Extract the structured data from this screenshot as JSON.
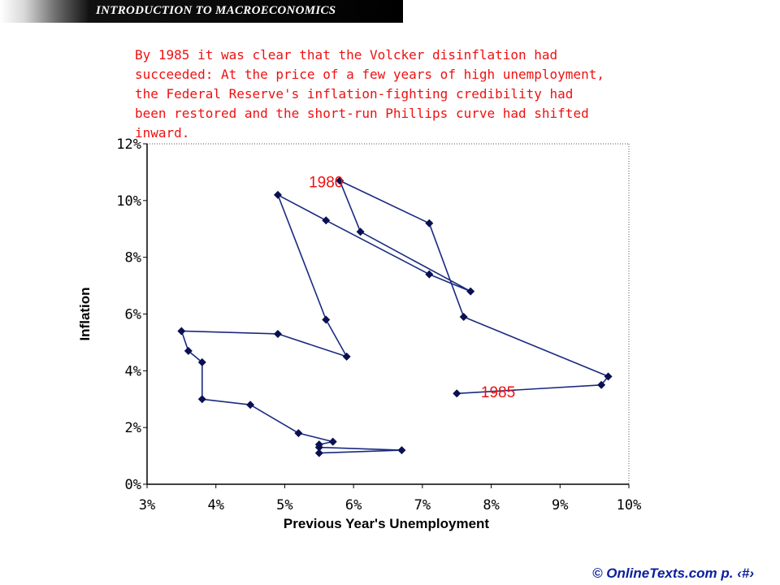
{
  "header": {
    "title": "INTRODUCTION TO MACROECONOMICS"
  },
  "caption": {
    "lines": [
      "By 1985 it was clear that the Volcker disinflation had",
      "succeeded: At the price of a few years of high unemployment,",
      "the Federal Reserve's inflation-fighting credibility had",
      "been restored and the short-run Phillips curve had shifted",
      "inward."
    ]
  },
  "footer": {
    "copyright": "© OnlineTexts.com",
    "page": "p. ‹#›"
  },
  "chart_data": {
    "type": "line",
    "title": "",
    "xlabel": "Previous Year's Unemployment",
    "ylabel": "Inflation",
    "xlim": [
      3,
      10
    ],
    "ylim": [
      0,
      12
    ],
    "x_ticks": [
      "3%",
      "4%",
      "5%",
      "6%",
      "7%",
      "8%",
      "9%",
      "10%"
    ],
    "y_ticks": [
      "0%",
      "2%",
      "4%",
      "6%",
      "8%",
      "10%",
      "12%"
    ],
    "grid": false,
    "series_color": "#1a2a80",
    "label_color": "#ee1111",
    "series": [
      {
        "points": [
          [
            5.5,
            1.1
          ],
          [
            6.7,
            1.2
          ],
          [
            5.5,
            1.3
          ],
          [
            5.5,
            1.4
          ],
          [
            5.7,
            1.5
          ],
          [
            5.2,
            1.8
          ],
          [
            4.5,
            2.8
          ],
          [
            3.8,
            3.0
          ],
          [
            3.8,
            4.3
          ],
          [
            3.6,
            4.7
          ],
          [
            3.5,
            5.4
          ],
          [
            4.9,
            5.3
          ],
          [
            5.9,
            4.5
          ],
          [
            5.6,
            5.8
          ],
          [
            4.9,
            10.2
          ],
          [
            5.6,
            9.3
          ],
          [
            7.1,
            7.4
          ],
          [
            7.7,
            6.8
          ],
          [
            6.1,
            8.9
          ],
          [
            5.8,
            10.7
          ],
          [
            7.1,
            9.2
          ],
          [
            7.6,
            5.9
          ],
          [
            9.7,
            3.8
          ],
          [
            9.6,
            3.5
          ],
          [
            7.5,
            3.2
          ]
        ]
      }
    ],
    "annotations": [
      {
        "text": "1980",
        "x": 5.6,
        "y": 10.7
      },
      {
        "text": "1985",
        "x": 8.1,
        "y": 3.3
      }
    ]
  }
}
